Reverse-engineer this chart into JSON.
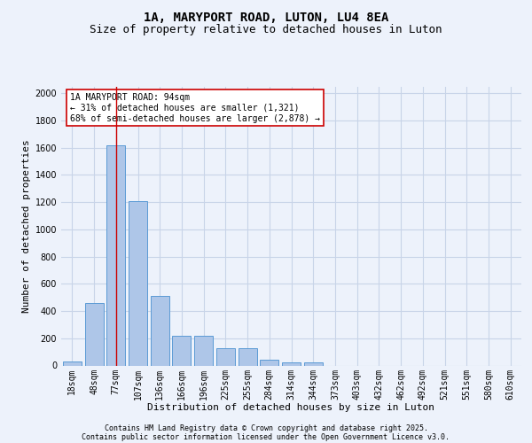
{
  "title": "1A, MARYPORT ROAD, LUTON, LU4 8EA",
  "subtitle": "Size of property relative to detached houses in Luton",
  "xlabel": "Distribution of detached houses by size in Luton",
  "ylabel": "Number of detached properties",
  "categories": [
    "18sqm",
    "48sqm",
    "77sqm",
    "107sqm",
    "136sqm",
    "166sqm",
    "196sqm",
    "225sqm",
    "255sqm",
    "284sqm",
    "314sqm",
    "344sqm",
    "373sqm",
    "403sqm",
    "432sqm",
    "462sqm",
    "492sqm",
    "521sqm",
    "551sqm",
    "580sqm",
    "610sqm"
  ],
  "values": [
    30,
    460,
    1620,
    1210,
    510,
    215,
    215,
    125,
    125,
    40,
    25,
    20,
    0,
    0,
    0,
    0,
    0,
    0,
    0,
    0,
    0
  ],
  "bar_color": "#aec6e8",
  "bar_edge_color": "#5b9bd5",
  "grid_color": "#c8d4e8",
  "bg_color": "#edf2fb",
  "vline_x": 2,
  "vline_color": "#cc0000",
  "annotation_text": "1A MARYPORT ROAD: 94sqm\n← 31% of detached houses are smaller (1,321)\n68% of semi-detached houses are larger (2,878) →",
  "annotation_box_color": "#ffffff",
  "annotation_box_edge": "#cc0000",
  "ylim": [
    0,
    2050
  ],
  "yticks": [
    0,
    200,
    400,
    600,
    800,
    1000,
    1200,
    1400,
    1600,
    1800,
    2000
  ],
  "footer1": "Contains HM Land Registry data © Crown copyright and database right 2025.",
  "footer2": "Contains public sector information licensed under the Open Government Licence v3.0.",
  "title_fontsize": 10,
  "subtitle_fontsize": 9,
  "axis_label_fontsize": 8,
  "tick_fontsize": 7,
  "annot_fontsize": 7
}
